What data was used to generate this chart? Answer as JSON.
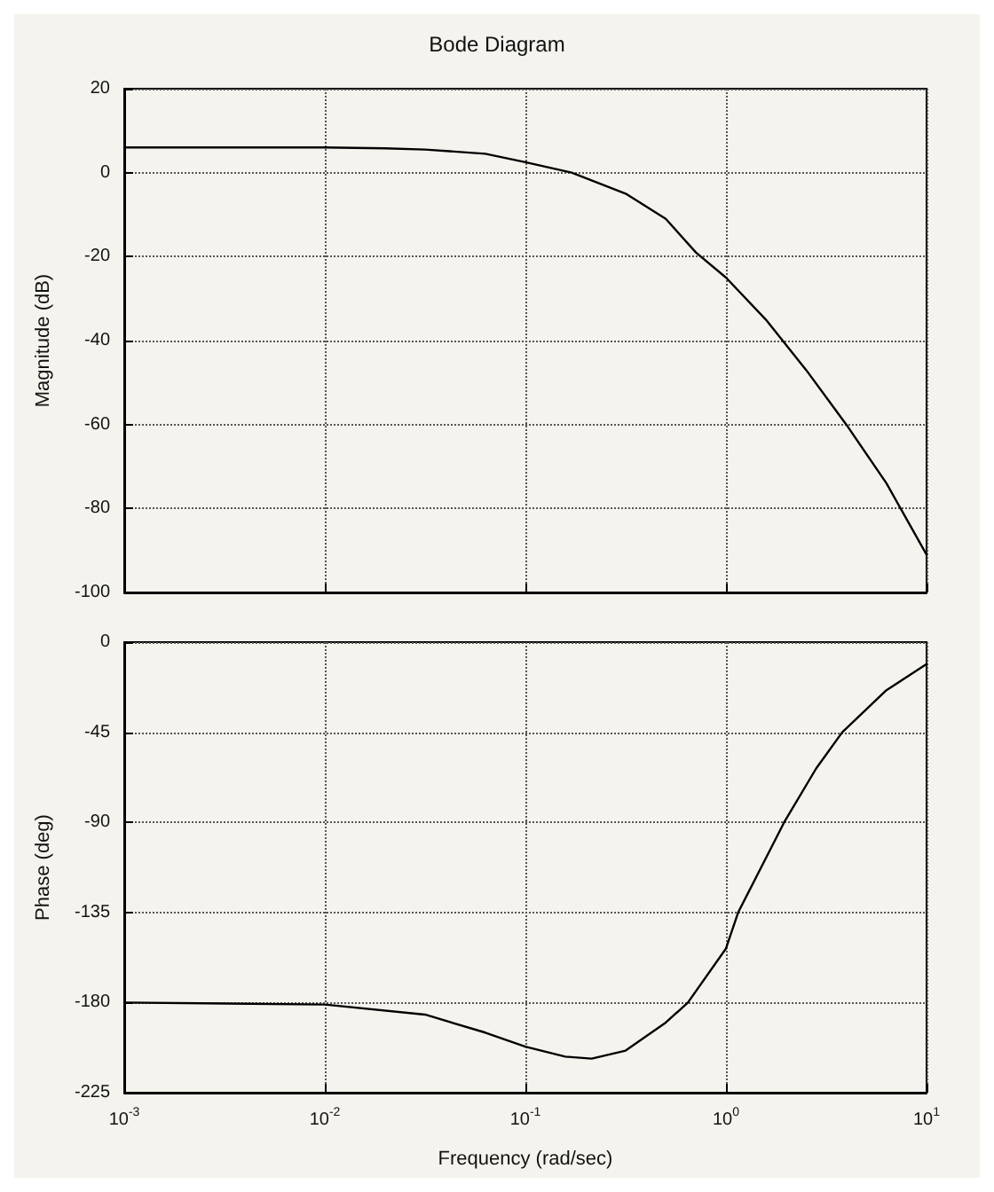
{
  "chart_data": [
    {
      "type": "line",
      "title": "Bode Diagram",
      "ylabel": "Magnitude (dB)",
      "log": "x",
      "grid": true,
      "tick_labels": "y",
      "xlim": [
        0.001,
        10
      ],
      "xticks": [
        {
          "value": 0.001,
          "label": null
        },
        {
          "value": 0.01,
          "label": null
        },
        {
          "value": 0.1,
          "label": null
        },
        {
          "value": 1,
          "label": null
        },
        {
          "value": 10,
          "label": null
        }
      ],
      "ylim": [
        -100,
        20
      ],
      "yticks": [
        -100,
        -80,
        -60,
        -40,
        -20,
        0,
        20
      ],
      "series": [
        {
          "color": "#000000",
          "x": [
            0.001,
            0.01,
            0.02,
            0.0316,
            0.0631,
            0.1,
            0.17,
            0.316,
            0.501,
            0.708,
            1,
            1.58,
            2.51,
            3.98,
            6.31,
            10
          ],
          "values": [
            6,
            6,
            5.8,
            5.5,
            4.5,
            2.5,
            0,
            -5,
            -11,
            -19,
            -25,
            -35,
            -47,
            -60,
            -74,
            -91
          ]
        }
      ]
    },
    {
      "type": "line",
      "xlabel": "Frequency (rad/sec)",
      "ylabel": "Phase (deg)",
      "log": "x",
      "grid": true,
      "xlim": [
        0.001,
        10
      ],
      "xticks": [
        {
          "value": 0.001,
          "label": "10$^{-3}$"
        },
        {
          "value": 0.01,
          "label": "10$^{-2}$"
        },
        {
          "value": 0.1,
          "label": "10$^{-1}$"
        },
        {
          "value": 1,
          "label": "10$^{0}$"
        },
        {
          "value": 10,
          "label": "10$^{1}$"
        }
      ],
      "ylim": [
        -225,
        0
      ],
      "yticks": [
        -225,
        -180,
        -135,
        -90,
        -45,
        0
      ],
      "series": [
        {
          "color": "#000000",
          "x": [
            0.001,
            0.01,
            0.0316,
            0.0631,
            0.1,
            0.158,
            0.214,
            0.316,
            0.501,
            0.646,
            1,
            1.15,
            1.95,
            2.82,
            3.8,
            6.31,
            10
          ],
          "values": [
            -180,
            -181,
            -186,
            -195,
            -202,
            -207,
            -208,
            -204,
            -190,
            -180,
            -153,
            -135,
            -90,
            -63,
            -45,
            -24,
            -11
          ]
        }
      ]
    }
  ]
}
